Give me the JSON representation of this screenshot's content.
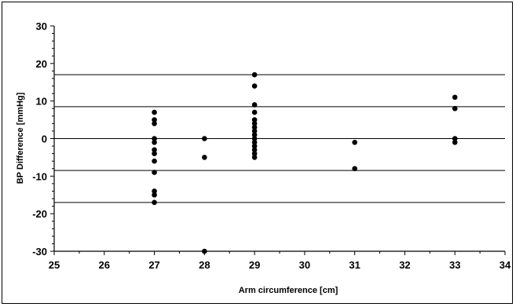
{
  "chart_data": {
    "type": "scatter",
    "title": "",
    "xlabel": "Arm circumference [cm]",
    "ylabel": "BP Difference [mmHg]",
    "xlim": [
      25,
      34
    ],
    "ylim": [
      -30,
      30
    ],
    "x_ticks": [
      "25",
      "26",
      "27",
      "28",
      "29",
      "30",
      "31",
      "32",
      "33",
      "34"
    ],
    "y_ticks": [
      "30",
      "20",
      "10",
      "0",
      "-10",
      "-20",
      "-30"
    ],
    "reference_lines": [
      17,
      8.5,
      0,
      -8.5,
      -17
    ],
    "grid": false,
    "legend": "none",
    "marker_color": "#000000",
    "points": [
      {
        "x": 27,
        "y": 7
      },
      {
        "x": 27,
        "y": 5
      },
      {
        "x": 27,
        "y": 4
      },
      {
        "x": 27,
        "y": 0
      },
      {
        "x": 27,
        "y": -1
      },
      {
        "x": 27,
        "y": -3
      },
      {
        "x": 27,
        "y": -4
      },
      {
        "x": 27,
        "y": -6
      },
      {
        "x": 27,
        "y": -9
      },
      {
        "x": 27,
        "y": -14
      },
      {
        "x": 27,
        "y": -15
      },
      {
        "x": 27,
        "y": -17
      },
      {
        "x": 28,
        "y": 0
      },
      {
        "x": 28,
        "y": -5
      },
      {
        "x": 28,
        "y": -30
      },
      {
        "x": 29,
        "y": 17
      },
      {
        "x": 29,
        "y": 14
      },
      {
        "x": 29,
        "y": 9
      },
      {
        "x": 29,
        "y": 7
      },
      {
        "x": 29,
        "y": 5
      },
      {
        "x": 29,
        "y": 4
      },
      {
        "x": 29,
        "y": 3
      },
      {
        "x": 29,
        "y": 2
      },
      {
        "x": 29,
        "y": 1
      },
      {
        "x": 29,
        "y": 0
      },
      {
        "x": 29,
        "y": -1
      },
      {
        "x": 29,
        "y": -2
      },
      {
        "x": 29,
        "y": -3
      },
      {
        "x": 29,
        "y": -4
      },
      {
        "x": 29,
        "y": -5
      },
      {
        "x": 31,
        "y": -1
      },
      {
        "x": 31,
        "y": -8
      },
      {
        "x": 33,
        "y": 11
      },
      {
        "x": 33,
        "y": 8
      },
      {
        "x": 33,
        "y": 0
      },
      {
        "x": 33,
        "y": -1
      }
    ]
  }
}
